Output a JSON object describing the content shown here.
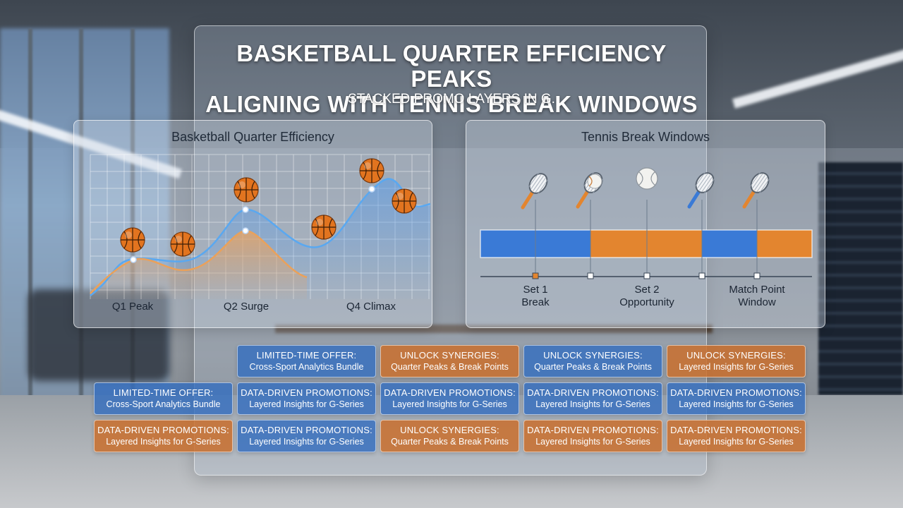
{
  "title_line1": "BASKETBALL QUARTER EFFICIENCY PEAKS",
  "title_line2": "ALIGNING WITH TENNIS BREAK WINDOWS",
  "subtitle": "STACKED PROMO LAYERS IN G.",
  "colors": {
    "blue": "#3a7ad6",
    "orange": "#e3852f",
    "blue_promo": "#346ebe",
    "orange_promo": "#c96e2d"
  },
  "basketball_panel": {
    "title": "Basketball Quarter Efficiency",
    "labels": [
      "Q1 Peak",
      "Q2 Surge",
      "Q4 Climax"
    ],
    "icon": "basketball-icon"
  },
  "tennis_panel": {
    "title": "Tennis Break Windows",
    "labels": [
      {
        "line1": "Set 1",
        "line2": "Break"
      },
      {
        "line1": "Set 2",
        "line2": "Opportunity"
      },
      {
        "line1": "Match Point",
        "line2": "Window"
      }
    ],
    "segment_colors": [
      "blue",
      "blue",
      "orange",
      "orange",
      "blue",
      "orange"
    ],
    "icons": [
      "tennis-racket-icon",
      "tennis-racket-ball-icon",
      "tennis-ball-icon",
      "tennis-racket-icon",
      "tennis-racket-icon"
    ]
  },
  "promos": [
    [
      {
        "color": "blue",
        "heading": "LIMITED-TIME OFFER:",
        "sub": "Cross-Sport Analytics Bundle"
      },
      {
        "color": "orange",
        "heading": "UNLOCK SYNERGIES:",
        "sub": "Quarter Peaks & Break Points"
      },
      {
        "color": "blue",
        "heading": "UNLOCK SYNERGIES:",
        "sub": "Quarter Peaks & Break Points"
      },
      {
        "color": "orange",
        "heading": "UNLOCK SYNERGIES:",
        "sub": "Layered Insights for G-Series"
      }
    ],
    [
      {
        "color": "blue",
        "heading": "LIMITED-TIME OFFER:",
        "sub": "Cross-Sport Analytics Bundle"
      },
      {
        "color": "blue",
        "heading": "DATA-DRIVEN PROMOTIONS:",
        "sub": "Layered Insights for G-Series"
      },
      {
        "color": "blue",
        "heading": "DATA-DRIVEN PROMOTIONS:",
        "sub": "Layered Insights for G-Series"
      },
      {
        "color": "blue",
        "heading": "DATA-DRIVEN PROMOTIONS:",
        "sub": "Layered Insights for G-Series"
      },
      {
        "color": "blue",
        "heading": "DATA-DRIVEN PROMOTIONS:",
        "sub": "Layered Insights for G-Series"
      }
    ],
    [
      {
        "color": "orange",
        "heading": "DATA-DRIVEN PROMOTIONS:",
        "sub": "Layered Insights for G-Series"
      },
      {
        "color": "blue",
        "heading": "DATA-DRIVEN PROMOTIONS:",
        "sub": "Layered Insights for G-Series"
      },
      {
        "color": "orange",
        "heading": "UNLOCK SYNERGIES:",
        "sub": "Quarter Peaks & Break Points"
      },
      {
        "color": "orange",
        "heading": "DATA-DRIVEN PROMOTIONS:",
        "sub": "Layered Insights for G-Series"
      },
      {
        "color": "orange",
        "heading": "DATA-DRIVEN PROMOTIONS:",
        "sub": "Layered Insights for G-Series"
      }
    ]
  ]
}
